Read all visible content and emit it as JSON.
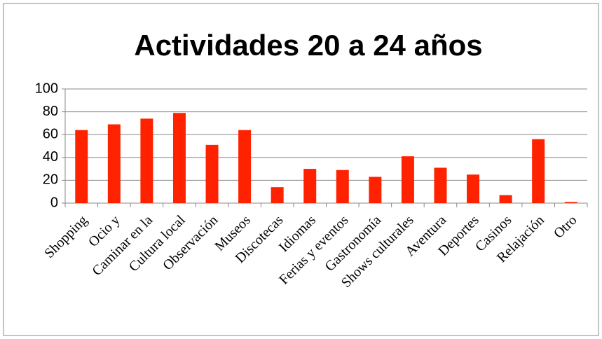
{
  "chart_data": {
    "type": "bar",
    "title": "Actividades 20 a 24 años",
    "categories": [
      "Shopping",
      "Ocio y",
      "Caminar en la",
      "Cultura local",
      "Observación",
      "Museos",
      "Discotecas",
      "Idiomas",
      "Ferias y eventos",
      "Gastronomía",
      "Shows culturales",
      "Aventura",
      "Deportes",
      "Casinos",
      "Relajación",
      "Otro"
    ],
    "values": [
      64,
      69,
      74,
      79,
      51,
      64,
      14,
      30,
      29,
      23,
      41,
      31,
      25,
      7,
      56,
      1
    ],
    "color": "#ff2200",
    "ylim": [
      0,
      100
    ],
    "yticks": [
      0,
      20,
      40,
      60,
      80,
      100
    ],
    "grid": true
  }
}
